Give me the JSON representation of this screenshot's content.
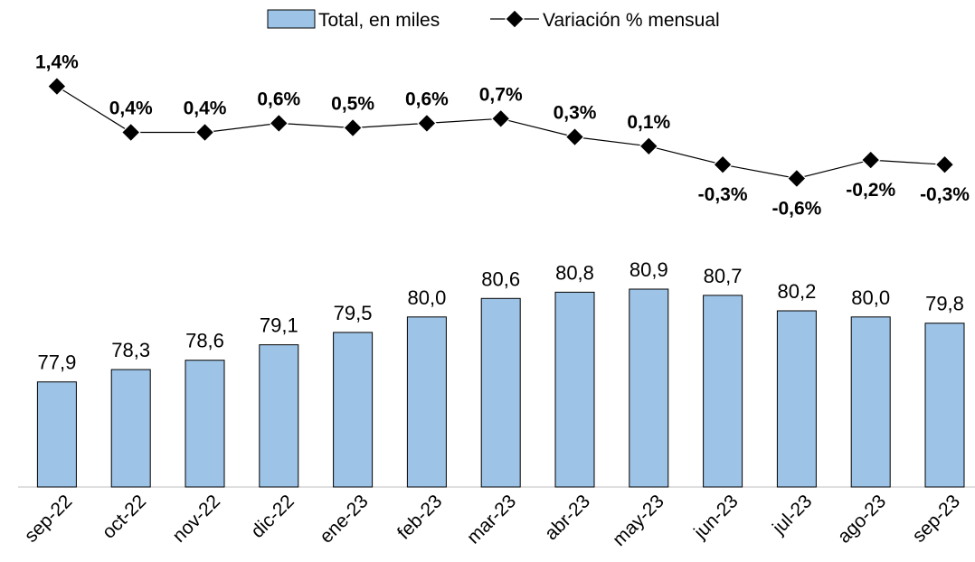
{
  "chart_data": {
    "type": "bar",
    "categories": [
      "sep-22",
      "oct-22",
      "nov-22",
      "dic-22",
      "ene-23",
      "feb-23",
      "mar-23",
      "abr-23",
      "may-23",
      "jun-23",
      "jul-23",
      "ago-23",
      "sep-23"
    ],
    "series": [
      {
        "name": "Total, en miles",
        "type": "bar",
        "values": [
          77.9,
          78.3,
          78.6,
          79.1,
          79.5,
          80.0,
          80.6,
          80.8,
          80.9,
          80.7,
          80.2,
          80.0,
          79.8
        ],
        "labels": [
          "77,9",
          "78,3",
          "78,6",
          "79,1",
          "79,5",
          "80,0",
          "80,6",
          "80,8",
          "80,9",
          "80,7",
          "80,2",
          "80,0",
          "79,8"
        ],
        "color": "#9dc3e6"
      },
      {
        "name": "Variación % mensual",
        "type": "line",
        "values": [
          1.4,
          0.4,
          0.4,
          0.6,
          0.5,
          0.6,
          0.7,
          0.3,
          0.1,
          -0.3,
          -0.6,
          -0.2,
          -0.3
        ],
        "labels": [
          "1,4%",
          "0,4%",
          "0,4%",
          "0,6%",
          "0,5%",
          "0,6%",
          "0,7%",
          "0,3%",
          "0,1%",
          "-0,3%",
          "-0,6%",
          "-0,2%",
          "-0,3%"
        ],
        "color": "#000000"
      }
    ],
    "title": "",
    "xlabel": "",
    "ylabel": "",
    "bar_ylim": [
      74.5,
      82.8
    ],
    "line_ylim": [
      -3.4,
      2.1
    ],
    "grid": false,
    "legend_position": "top-center"
  }
}
